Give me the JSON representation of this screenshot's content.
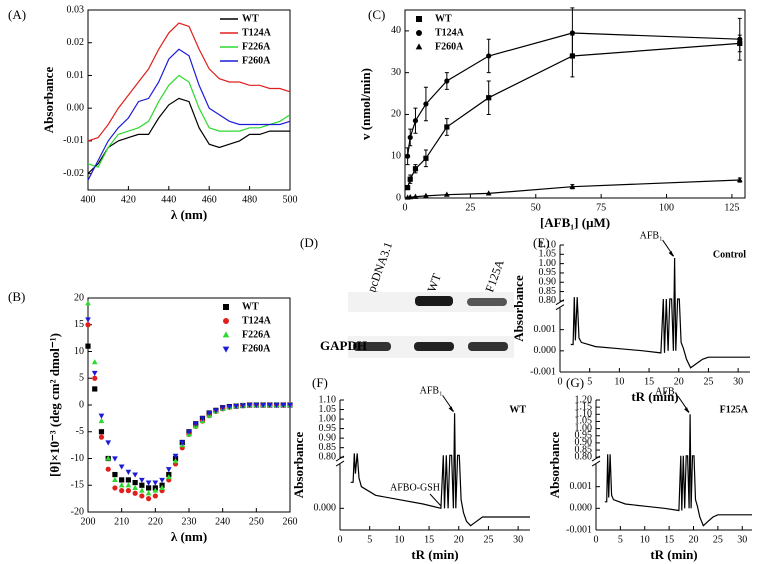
{
  "chart_data": [
    {
      "type": "line",
      "panel": "(A)",
      "x_label": "λ (nm)",
      "y_label": "Absorbance",
      "legend": "upper right",
      "x": [
        400,
        405,
        410,
        415,
        420,
        425,
        430,
        435,
        440,
        445,
        450,
        455,
        460,
        465,
        470,
        475,
        480,
        485,
        490,
        495,
        500
      ],
      "series": [
        {
          "name": "WT",
          "color": "#000000",
          "values": [
            -0.02,
            -0.017,
            -0.012,
            -0.01,
            -0.009,
            -0.008,
            -0.008,
            -0.003,
            0.001,
            0.003,
            0.002,
            -0.006,
            -0.011,
            -0.012,
            -0.011,
            -0.01,
            -0.008,
            -0.008,
            -0.007,
            -0.007,
            -0.007
          ]
        },
        {
          "name": "T124A",
          "color": "#e0201c",
          "values": [
            -0.01,
            -0.009,
            -0.005,
            0.0,
            0.004,
            0.008,
            0.012,
            0.018,
            0.023,
            0.026,
            0.025,
            0.018,
            0.012,
            0.009,
            0.008,
            0.008,
            0.007,
            0.007,
            0.006,
            0.006,
            0.005
          ]
        },
        {
          "name": "F226A",
          "color": "#2fd82f",
          "values": [
            -0.017,
            -0.018,
            -0.012,
            -0.008,
            -0.007,
            -0.006,
            -0.004,
            0.002,
            0.007,
            0.01,
            0.008,
            0.0,
            -0.006,
            -0.007,
            -0.007,
            -0.007,
            -0.006,
            -0.006,
            -0.005,
            -0.004,
            -0.002
          ]
        },
        {
          "name": "F260A",
          "color": "#1c1cd8",
          "values": [
            -0.022,
            -0.016,
            -0.01,
            -0.006,
            -0.003,
            0.002,
            0.003,
            0.008,
            0.015,
            0.018,
            0.016,
            0.007,
            0.0,
            -0.002,
            -0.004,
            -0.005,
            -0.005,
            -0.005,
            -0.005,
            -0.005,
            -0.004
          ]
        }
      ],
      "xlim": [
        400,
        500
      ],
      "xticks": [
        400,
        420,
        440,
        460,
        480,
        500
      ],
      "ylim": [
        -0.025,
        0.03
      ],
      "yticks": [
        -0.02,
        -0.01,
        {
          "value": 0,
          "label": "0.00"
        },
        0.01,
        0.02,
        0.03
      ]
    },
    {
      "type": "scatter",
      "panel": "(B)",
      "x_label": "λ (nm)",
      "y_label": "[θ]×10⁻³ (deg cm² dmol⁻¹)",
      "legend": "upper right",
      "x": [
        200,
        202,
        204,
        206,
        208,
        210,
        212,
        214,
        216,
        218,
        220,
        222,
        224,
        226,
        228,
        230,
        232,
        234,
        236,
        238,
        240,
        242,
        244,
        246,
        248,
        250,
        252,
        254,
        256,
        258,
        260
      ],
      "series": [
        {
          "name": "WT",
          "color": "#000000",
          "marker": "square",
          "values": [
            11,
            3,
            -5,
            -10,
            -13,
            -14,
            -14,
            -14.5,
            -15,
            -15.5,
            -15.5,
            -15,
            -13,
            -10,
            -7,
            -5,
            -3.5,
            -2.5,
            -1.5,
            -1,
            -0.5,
            -0.3,
            -0.2,
            -0.1,
            0,
            0,
            0,
            0,
            0,
            0,
            0
          ]
        },
        {
          "name": "T124A",
          "color": "#e0201c",
          "marker": "circle",
          "values": [
            15,
            5,
            -6,
            -12,
            -15.5,
            -16,
            -16,
            -16.5,
            -17,
            -17.5,
            -17,
            -16,
            -14,
            -11,
            -8,
            -5.5,
            -4,
            -3,
            -2,
            -1.2,
            -0.7,
            -0.4,
            -0.2,
            -0.1,
            0,
            0,
            0,
            0,
            0,
            0,
            0
          ]
        },
        {
          "name": "F226A",
          "color": "#2fd82f",
          "marker": "triangle-up",
          "values": [
            19,
            8,
            -3,
            -10,
            -14,
            -15,
            -15,
            -15.5,
            -16,
            -16.5,
            -16,
            -15.5,
            -13.5,
            -10.5,
            -7.5,
            -5.5,
            -4,
            -3,
            -2,
            -1.2,
            -0.7,
            -0.4,
            -0.2,
            -0.1,
            0,
            0,
            0,
            0,
            0,
            0,
            0
          ]
        },
        {
          "name": "F260A",
          "color": "#1c1cd8",
          "marker": "triangle-down",
          "values": [
            16,
            6,
            -2,
            -7,
            -10,
            -11.5,
            -12.5,
            -13,
            -14,
            -14.5,
            -14.5,
            -14,
            -12,
            -9.5,
            -7,
            -5,
            -3.5,
            -2.5,
            -1.5,
            -1,
            -0.5,
            -0.3,
            -0.2,
            -0.1,
            0,
            0,
            0,
            0,
            0,
            0,
            0
          ]
        }
      ],
      "xlim": [
        200,
        260
      ],
      "xticks": [
        200,
        210,
        220,
        230,
        240,
        250,
        260
      ],
      "ylim": [
        -20,
        20
      ],
      "yticks": [
        -20,
        -15,
        -10,
        -5,
        0,
        5,
        10,
        15,
        20
      ]
    },
    {
      "type": "scatter",
      "panel": "(C)",
      "x_label": "[AFB₁] (μM)",
      "y_label": "v (nmol/min)",
      "legend": "upper left",
      "connect": true,
      "x": [
        1,
        2,
        4,
        8,
        16,
        32,
        64,
        128
      ],
      "series": [
        {
          "name": "WT",
          "color": "#000000",
          "marker": "square",
          "values": [
            2.5,
            4.5,
            7,
            9.5,
            17,
            24,
            34,
            37
          ],
          "errors": [
            0.5,
            1,
            1,
            2,
            2,
            4,
            5,
            2
          ]
        },
        {
          "name": "T124A",
          "color": "#000000",
          "marker": "circle",
          "values": [
            10,
            14.5,
            18.5,
            22.5,
            28,
            34,
            39.5,
            38
          ],
          "errors": [
            2,
            2,
            3,
            4,
            2,
            4,
            6,
            5
          ]
        },
        {
          "name": "F260A",
          "color": "#000000",
          "marker": "triangle-up",
          "values": [
            0.1,
            0.2,
            0.3,
            0.5,
            0.8,
            1.1,
            2.7,
            4.3
          ],
          "errors": [
            0,
            0,
            0,
            0,
            0,
            0,
            0.5,
            0.5
          ]
        }
      ],
      "xlim": [
        0,
        130
      ],
      "xticks": [
        0,
        25,
        50,
        75,
        100,
        125
      ],
      "ylim": [
        0,
        45
      ],
      "yticks": [
        0,
        10,
        20,
        30,
        40
      ]
    },
    {
      "type": "blot",
      "panel": "(D)",
      "lanes": [
        "pcDNA3.1",
        "WT",
        "F125A"
      ],
      "row_label": "GAPDH"
    },
    {
      "type": "line",
      "panel": "(E)",
      "x_label": "tR (min)",
      "y_label": "Absorbance",
      "sample": "Control",
      "peak_label": "AFB₁",
      "x": [
        1.8,
        2.2,
        2.4,
        2.6,
        2.9,
        3.2,
        3.6,
        6,
        10,
        14,
        17,
        17.4,
        17.6,
        17.9,
        18.2,
        18.5,
        18.8,
        19.1,
        19.3,
        19.5,
        19.8,
        20.1,
        20.4,
        20.8,
        21.3,
        22,
        23,
        24,
        25,
        28,
        32
      ],
      "series": [
        {
          "color": "#000000",
          "values": [
            0.0003,
            0.0003,
            0.82,
            0.0005,
            0.82,
            0.0006,
            0.0004,
            0.0002,
            0.0001,
            0.0,
            -0.0001,
            0.81,
            -0.0001,
            0.81,
            0.0,
            0.81,
            0.81,
            0.0,
            1.03,
            0.0,
            0.81,
            0.81,
            0.0004,
            0.0001,
            -0.0004,
            -0.0008,
            -0.0006,
            -0.0004,
            -0.0003,
            -0.0003,
            -0.0003
          ]
        }
      ],
      "xlim": [
        0,
        32
      ],
      "xticks": [
        0,
        5,
        10,
        15,
        20,
        25,
        30
      ],
      "ylim": [
        -0.001,
        1.1
      ],
      "ybreak": [
        0.002,
        0.8
      ],
      "yticks": [
        -0.001,
        {
          "value": 0,
          "label": "0.000"
        },
        0.001,
        {
          "value": 0.8,
          "label": "0.80"
        },
        0.85,
        {
          "value": 0.9,
          "label": "0.90"
        },
        0.95,
        {
          "value": 1,
          "label": "1.00"
        },
        1.05,
        {
          "value": 1.1,
          "label": "1.10"
        }
      ]
    },
    {
      "type": "line",
      "panel": "(F)",
      "x_label": "tR (min)",
      "y_label": "Absorbance",
      "sample": "WT",
      "peak_label": "AFB₁",
      "minor_label": "AFBO-GSH",
      "x": [
        1.8,
        2.2,
        2.4,
        2.6,
        2.9,
        3.2,
        3.6,
        6,
        10,
        14,
        17,
        17.4,
        17.6,
        17.9,
        18.2,
        18.5,
        18.8,
        19.1,
        19.3,
        19.5,
        19.8,
        20.1,
        20.4,
        20.8,
        21.3,
        22,
        23,
        24,
        25,
        28,
        32
      ],
      "series": [
        {
          "color": "#000000",
          "values": [
            0.0006,
            0.0006,
            0.82,
            0.0008,
            0.82,
            0.0007,
            0.0005,
            0.0003,
            0.0002,
            0.0001,
            0.0,
            0.81,
            0.0,
            0.81,
            0.0,
            0.81,
            0.81,
            0.0,
            1.03,
            0.0,
            0.81,
            0.81,
            0.0002,
            -0.0001,
            -0.0003,
            -0.0004,
            -0.0003,
            -0.0002,
            -0.0002,
            -0.0002,
            -0.0002
          ]
        }
      ],
      "xlim": [
        0,
        32
      ],
      "xticks": [
        0,
        5,
        10,
        15,
        20,
        25,
        30
      ],
      "ylim": [
        -0.0005,
        1.1
      ],
      "ybreak": [
        0.001,
        0.8
      ],
      "yticks": [
        {
          "value": 0,
          "label": "0.000"
        },
        {
          "value": 0.8,
          "label": "0.80"
        },
        0.85,
        {
          "value": 0.9,
          "label": "0.90"
        },
        0.95,
        {
          "value": 1,
          "label": "1.00"
        },
        1.05,
        {
          "value": 1.1,
          "label": "1.10"
        }
      ]
    },
    {
      "type": "line",
      "panel": "(G)",
      "x_label": "tR (min)",
      "y_label": "Absorbance",
      "sample": "F125A",
      "peak_label": "AFB₁",
      "x": [
        1.8,
        2.2,
        2.4,
        2.6,
        2.9,
        3.2,
        3.6,
        6,
        10,
        14,
        17,
        17.4,
        17.6,
        17.9,
        18.2,
        18.5,
        18.8,
        19.1,
        19.3,
        19.5,
        19.8,
        20.1,
        20.4,
        20.8,
        21.3,
        22,
        23,
        24,
        25,
        28,
        32
      ],
      "series": [
        {
          "color": "#000000",
          "values": [
            0.0003,
            0.0003,
            0.82,
            0.0005,
            0.82,
            0.0006,
            0.0004,
            0.0002,
            0.0001,
            0.0,
            -0.0001,
            0.81,
            -0.0001,
            0.81,
            0.0,
            0.81,
            0.81,
            0.0,
            1.1,
            0.0,
            0.81,
            0.81,
            0.0004,
            0.0001,
            -0.0004,
            -0.0008,
            -0.0006,
            -0.0004,
            -0.0003,
            -0.0003,
            -0.0003
          ]
        }
      ],
      "xlim": [
        0,
        32
      ],
      "xticks": [
        0,
        5,
        10,
        15,
        20,
        25,
        30
      ],
      "ylim": [
        -0.001,
        1.2
      ],
      "ybreak": [
        0.002,
        0.8
      ],
      "yticks": [
        -0.001,
        {
          "value": 0,
          "label": "0.000"
        },
        0.001,
        {
          "value": 0.8,
          "label": "0.80"
        },
        0.85,
        {
          "value": 0.9,
          "label": "0.90"
        },
        0.95,
        {
          "value": 1,
          "label": "1.00"
        },
        1.05,
        {
          "value": 1.1,
          "label": "1.10"
        },
        1.15,
        {
          "value": 1.2,
          "label": "1.20"
        }
      ]
    }
  ]
}
